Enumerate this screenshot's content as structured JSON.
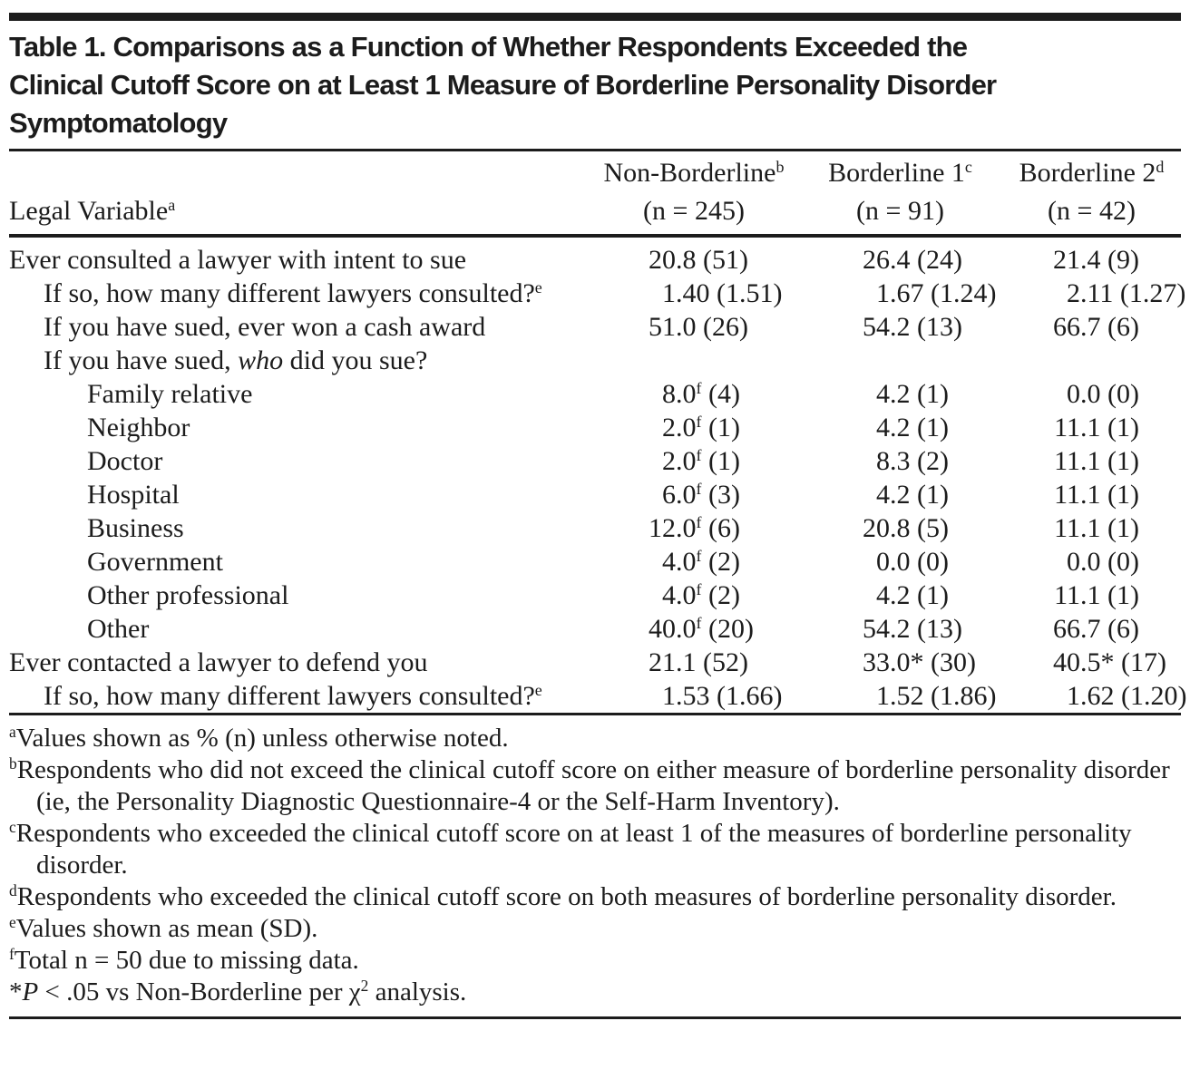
{
  "style": {
    "ink": "#1c1c1c",
    "paper": "#ffffff"
  },
  "table": {
    "title": "Table 1. Comparisons as a Function of Whether Respondents Exceeded the\nClinical Cutoff Score on at Least 1 Measure of Borderline Personality Disorder\nSymptomatology",
    "columns": {
      "stub_header": "Legal Variable^a",
      "groups": [
        {
          "label": "Non-Borderline^b",
          "n": "(n = 245)"
        },
        {
          "label": "Borderline 1^c",
          "n": "(n = 91)"
        },
        {
          "label": "Borderline 2^d",
          "n": "(n = 42)"
        }
      ]
    },
    "rows": [
      {
        "label": "Ever consulted a lawyer with intent to sue",
        "indent": 0,
        "cells": [
          "20.8 (51)",
          "26.4 (24)",
          "21.4 (9)"
        ]
      },
      {
        "label": "If so, how many different lawyers consulted?^e",
        "indent": 1,
        "cells": [
          "1.40 (1.51)",
          "1.67 (1.24)",
          "2.11 (1.27)"
        ]
      },
      {
        "label": "If you have sued, ever won a cash award",
        "indent": 1,
        "cells": [
          "51.0 (26)",
          "54.2 (13)",
          "66.7 (6)"
        ]
      },
      {
        "label": "If you have sued, _who_ did you sue?",
        "indent": 1,
        "cells": [
          "",
          "",
          ""
        ]
      },
      {
        "label": "Family relative",
        "indent": 2,
        "cells": [
          "8.0^f (4)",
          "4.2 (1)",
          "0.0 (0)"
        ]
      },
      {
        "label": "Neighbor",
        "indent": 2,
        "cells": [
          "2.0^f (1)",
          "4.2 (1)",
          "11.1 (1)"
        ]
      },
      {
        "label": "Doctor",
        "indent": 2,
        "cells": [
          "2.0^f (1)",
          "8.3 (2)",
          "11.1 (1)"
        ]
      },
      {
        "label": "Hospital",
        "indent": 2,
        "cells": [
          "6.0^f (3)",
          "4.2 (1)",
          "11.1 (1)"
        ]
      },
      {
        "label": "Business",
        "indent": 2,
        "cells": [
          "12.0^f (6)",
          "20.8 (5)",
          "11.1 (1)"
        ]
      },
      {
        "label": "Government",
        "indent": 2,
        "cells": [
          "4.0^f (2)",
          "0.0 (0)",
          "0.0 (0)"
        ]
      },
      {
        "label": "Other professional",
        "indent": 2,
        "cells": [
          "4.0^f (2)",
          "4.2 (1)",
          "11.1 (1)"
        ]
      },
      {
        "label": "Other",
        "indent": 2,
        "cells": [
          "40.0^f (20)",
          "54.2 (13)",
          "66.7 (6)"
        ]
      },
      {
        "label": "Ever contacted a lawyer to defend you",
        "indent": 0,
        "cells": [
          "21.1 (52)",
          "33.0* (30)",
          "40.5* (17)"
        ]
      },
      {
        "label": "If so, how many different lawyers consulted?^e",
        "indent": 1,
        "cells": [
          "1.53 (1.66)",
          "1.52 (1.86)",
          "1.62 (1.20)"
        ]
      }
    ],
    "footnotes": [
      "^aValues shown as % (n) unless otherwise noted.",
      "^bRespondents who did not exceed the clinical cutoff score on either measure of borderline personality disorder (ie, the Personality Diagnostic Questionnaire-4 or the Self-Harm Inventory).",
      "^cRespondents who exceeded the clinical cutoff score on at least 1 of the measures of borderline personality disorder.",
      "^dRespondents who exceeded the clinical cutoff score on both measures of borderline personality disorder.",
      "^eValues shown as mean (SD).",
      "^fTotal n = 50 due to missing data.",
      "*_P_ < .05 vs Non-Borderline per χ^2 analysis."
    ]
  }
}
